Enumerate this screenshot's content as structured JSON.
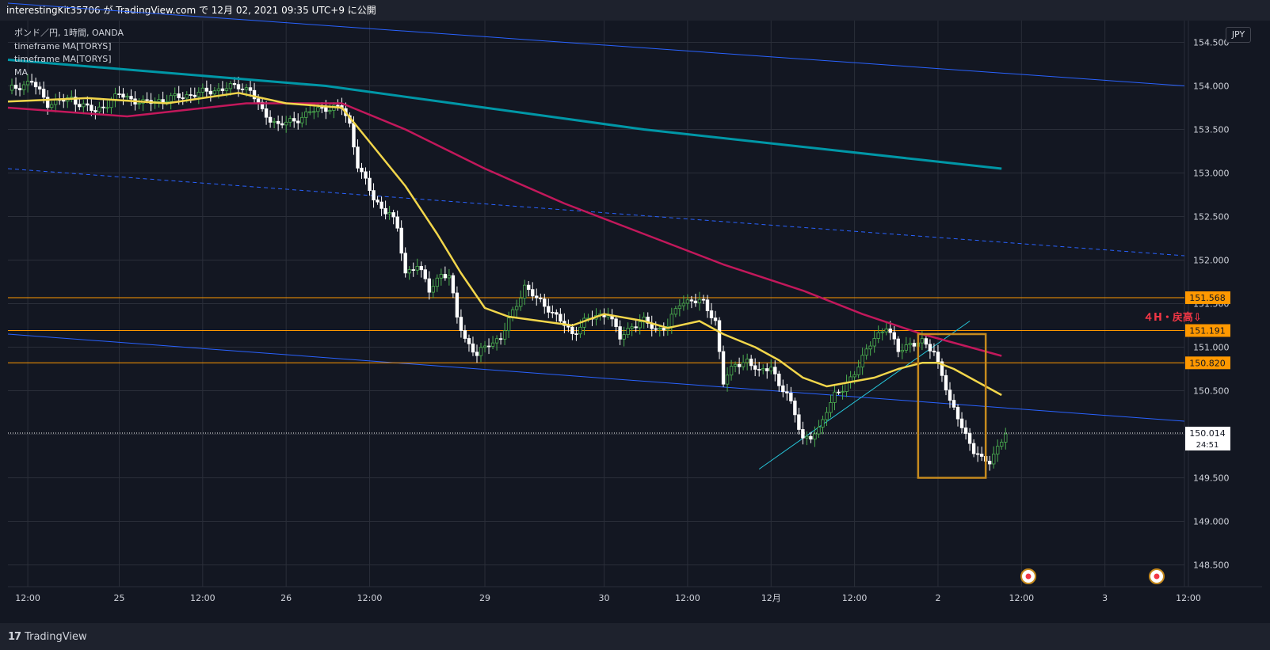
{
  "header": {
    "publisher_text": "interestingKit35706 が TradingView.com で 12月 02, 2021 09:35 UTC+9 に公開"
  },
  "legend": {
    "symbol": "ポンド／円, 1時間, OANDA",
    "indicator_1": "timeframe MA[TORYS]",
    "indicator_2": "timeframe MA[TORYS]",
    "indicator_3": "MA"
  },
  "currency_button": "JPY",
  "annotation_text": "４H・戻高⇩",
  "footer": {
    "logo": "TradingView"
  },
  "colors": {
    "background": "#131722",
    "grid": "#2a2e39",
    "candle_up": "#4caf50",
    "candle_down": "#ffffff",
    "ma_fast": "#f2d64b",
    "ma_mid": "#c2185b",
    "ma_slow": "#0097a7",
    "channel": "#2962ff",
    "level_line": "#ff9800",
    "trendline": "#26c6da",
    "box": "#c68a1e",
    "annotation": "#f23645"
  },
  "chart_data": {
    "type": "candlestick",
    "symbol": "GBPJPY",
    "timeframe": "1h",
    "ylim": [
      148.25,
      154.75
    ],
    "y_ticks": [
      "154.500",
      "154.000",
      "153.500",
      "153.000",
      "152.500",
      "152.000",
      "151.500",
      "151.000",
      "150.500",
      "150.000",
      "149.500",
      "149.000",
      "148.500"
    ],
    "x_ticks": [
      "12:00",
      "25",
      "12:00",
      "26",
      "12:00",
      "29",
      "30",
      "12:00",
      "12月",
      "12:00",
      "2",
      "12:00",
      "3",
      "12:00"
    ],
    "current_price": "150.014",
    "countdown": "24:51",
    "levels": [
      {
        "value": 151.568,
        "label": "151.568"
      },
      {
        "value": 151.191,
        "label": "151.191"
      },
      {
        "value": 150.82,
        "label": "150.820"
      }
    ],
    "price_path": [
      [
        0,
        153.95
      ],
      [
        6,
        154.05
      ],
      [
        10,
        153.8
      ],
      [
        16,
        153.85
      ],
      [
        22,
        153.7
      ],
      [
        28,
        153.9
      ],
      [
        34,
        153.8
      ],
      [
        40,
        153.85
      ],
      [
        46,
        153.9
      ],
      [
        52,
        153.95
      ],
      [
        58,
        154.0
      ],
      [
        61,
        153.95
      ],
      [
        64,
        153.7
      ],
      [
        68,
        153.55
      ],
      [
        72,
        153.6
      ],
      [
        76,
        153.7
      ],
      [
        80,
        153.75
      ],
      [
        84,
        153.75
      ],
      [
        86,
        153.55
      ],
      [
        88,
        153.1
      ],
      [
        90,
        152.9
      ],
      [
        92,
        152.7
      ],
      [
        94,
        152.6
      ],
      [
        96,
        152.55
      ],
      [
        98,
        152.35
      ],
      [
        100,
        151.85
      ],
      [
        103,
        151.95
      ],
      [
        106,
        151.65
      ],
      [
        109,
        151.85
      ],
      [
        111,
        151.8
      ],
      [
        113,
        151.35
      ],
      [
        115,
        151.1
      ],
      [
        118,
        150.9
      ],
      [
        121,
        151.05
      ],
      [
        124,
        151.1
      ],
      [
        127,
        151.4
      ],
      [
        130,
        151.7
      ],
      [
        133,
        151.55
      ],
      [
        136,
        151.45
      ],
      [
        139,
        151.3
      ],
      [
        142,
        151.15
      ],
      [
        145,
        151.3
      ],
      [
        148,
        151.35
      ],
      [
        151,
        151.4
      ],
      [
        154,
        151.1
      ],
      [
        157,
        151.25
      ],
      [
        160,
        151.3
      ],
      [
        163,
        151.2
      ],
      [
        166,
        151.25
      ],
      [
        169,
        151.5
      ],
      [
        172,
        151.55
      ],
      [
        175,
        151.5
      ],
      [
        178,
        151.3
      ],
      [
        180,
        150.6
      ],
      [
        183,
        150.8
      ],
      [
        186,
        150.85
      ],
      [
        189,
        150.7
      ],
      [
        192,
        150.8
      ],
      [
        194,
        150.55
      ],
      [
        196,
        150.45
      ],
      [
        198,
        150.25
      ],
      [
        200,
        149.95
      ],
      [
        202,
        149.95
      ],
      [
        204,
        150.05
      ],
      [
        206,
        150.3
      ],
      [
        208,
        150.45
      ],
      [
        210,
        150.5
      ],
      [
        212,
        150.65
      ],
      [
        214,
        150.8
      ],
      [
        216,
        150.95
      ],
      [
        218,
        151.1
      ],
      [
        221,
        151.25
      ],
      [
        224,
        150.95
      ],
      [
        227,
        151.05
      ],
      [
        230,
        151.05
      ],
      [
        233,
        150.95
      ],
      [
        235,
        150.7
      ],
      [
        237,
        150.35
      ],
      [
        239,
        150.2
      ],
      [
        241,
        150.0
      ],
      [
        243,
        149.8
      ],
      [
        245,
        149.7
      ],
      [
        247,
        149.7
      ],
      [
        249,
        149.85
      ],
      [
        251,
        150.0
      ]
    ],
    "ma_fast_path": [
      [
        0,
        153.82
      ],
      [
        20,
        153.86
      ],
      [
        40,
        153.8
      ],
      [
        58,
        153.92
      ],
      [
        70,
        153.8
      ],
      [
        84,
        153.75
      ],
      [
        92,
        153.3
      ],
      [
        100,
        152.85
      ],
      [
        108,
        152.3
      ],
      [
        114,
        151.85
      ],
      [
        120,
        151.45
      ],
      [
        126,
        151.35
      ],
      [
        134,
        151.3
      ],
      [
        142,
        151.25
      ],
      [
        150,
        151.38
      ],
      [
        160,
        151.3
      ],
      [
        166,
        151.22
      ],
      [
        174,
        151.3
      ],
      [
        180,
        151.15
      ],
      [
        188,
        151.0
      ],
      [
        194,
        150.85
      ],
      [
        200,
        150.65
      ],
      [
        206,
        150.55
      ],
      [
        212,
        150.6
      ],
      [
        218,
        150.65
      ],
      [
        224,
        150.75
      ],
      [
        230,
        150.82
      ],
      [
        234,
        150.82
      ],
      [
        238,
        150.75
      ],
      [
        244,
        150.6
      ],
      [
        250,
        150.45
      ]
    ],
    "ma_mid_path": [
      [
        0,
        153.75
      ],
      [
        30,
        153.65
      ],
      [
        60,
        153.8
      ],
      [
        84,
        153.8
      ],
      [
        100,
        153.5
      ],
      [
        120,
        153.05
      ],
      [
        140,
        152.65
      ],
      [
        160,
        152.3
      ],
      [
        180,
        151.95
      ],
      [
        200,
        151.65
      ],
      [
        215,
        151.38
      ],
      [
        230,
        151.15
      ],
      [
        242,
        151.0
      ],
      [
        250,
        150.9
      ]
    ],
    "ma_slow_path": [
      [
        0,
        154.3
      ],
      [
        40,
        154.15
      ],
      [
        80,
        154.0
      ],
      [
        120,
        153.75
      ],
      [
        160,
        153.5
      ],
      [
        200,
        153.3
      ],
      [
        230,
        153.15
      ],
      [
        250,
        153.05
      ]
    ],
    "channel_upper": [
      [
        0,
        154.95
      ],
      [
        296,
        154.0
      ]
    ],
    "channel_mid": [
      [
        0,
        153.05
      ],
      [
        296,
        152.05
      ]
    ],
    "channel_lower": [
      [
        0,
        151.15
      ],
      [
        296,
        150.15
      ]
    ],
    "trendline": [
      [
        189,
        149.6
      ],
      [
        242,
        151.3
      ]
    ],
    "box": {
      "x0": 229,
      "x1": 246,
      "y_top": 151.15,
      "y_bottom": 149.5
    },
    "x_tick_positions": [
      5,
      28,
      49,
      70,
      91,
      120,
      150,
      171,
      192,
      213,
      234,
      255,
      276,
      297
    ]
  }
}
